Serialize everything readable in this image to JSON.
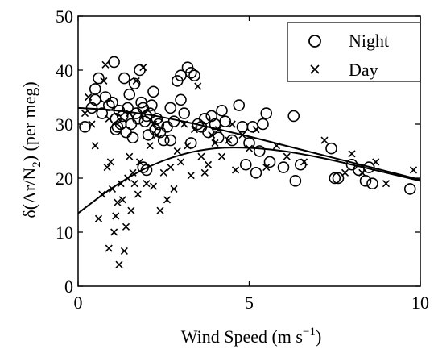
{
  "chart_data": {
    "type": "scatter",
    "xlabel": "Wind Speed (m s",
    "xlabel_sup": "−1",
    "xlabel_close": ")",
    "ylabel_pre": "δ(Ar/N",
    "ylabel_sub": "2",
    "ylabel_post": ") (per meg)",
    "xlim": [
      0,
      10
    ],
    "ylim": [
      0,
      50
    ],
    "xticks": [
      0,
      5,
      10
    ],
    "yticks": [
      0,
      10,
      20,
      30,
      40,
      50
    ],
    "grid": false,
    "legend_position": "top-right",
    "series": [
      {
        "name": "Night",
        "marker": "circle",
        "points": [
          [
            0.2,
            29.5
          ],
          [
            0.4,
            33
          ],
          [
            0.5,
            34.5
          ],
          [
            0.5,
            36.5
          ],
          [
            0.6,
            38.5
          ],
          [
            0.7,
            32
          ],
          [
            0.8,
            35
          ],
          [
            0.9,
            33.5
          ],
          [
            1.0,
            34
          ],
          [
            1.05,
            41.5
          ],
          [
            1.1,
            31
          ],
          [
            1.15,
            29.5
          ],
          [
            1.2,
            32.5
          ],
          [
            1.25,
            30
          ],
          [
            1.3,
            31.5
          ],
          [
            1.35,
            38.5
          ],
          [
            1.4,
            28.5
          ],
          [
            1.45,
            33
          ],
          [
            1.5,
            35.5
          ],
          [
            1.55,
            30
          ],
          [
            1.6,
            27.5
          ],
          [
            1.65,
            37.5
          ],
          [
            1.7,
            32
          ],
          [
            1.75,
            31
          ],
          [
            1.8,
            40
          ],
          [
            1.85,
            34
          ],
          [
            1.9,
            33
          ],
          [
            1.95,
            30.5
          ],
          [
            2.0,
            31.5
          ],
          [
            2.05,
            28
          ],
          [
            2.1,
            32
          ],
          [
            2.15,
            33.5
          ],
          [
            2.2,
            36
          ],
          [
            2.25,
            29
          ],
          [
            2.3,
            31
          ],
          [
            2.35,
            30
          ],
          [
            2.4,
            28.5
          ],
          [
            2.5,
            27
          ],
          [
            2.6,
            29.5
          ],
          [
            2.7,
            33
          ],
          [
            2.8,
            30.5
          ],
          [
            2.9,
            38
          ],
          [
            3.0,
            39
          ],
          [
            3.1,
            32
          ],
          [
            3.2,
            40.5
          ],
          [
            3.3,
            39.5
          ],
          [
            3.4,
            39
          ],
          [
            3.5,
            30
          ],
          [
            3.6,
            29.5
          ],
          [
            3.7,
            31
          ],
          [
            3.8,
            28.5
          ],
          [
            3.9,
            31.5
          ],
          [
            4.0,
            30
          ],
          [
            4.1,
            27.5
          ],
          [
            4.2,
            32.5
          ],
          [
            4.3,
            30.5
          ],
          [
            4.5,
            27
          ],
          [
            4.7,
            33.5
          ],
          [
            4.8,
            29.5
          ],
          [
            4.9,
            22.5
          ],
          [
            5.0,
            26.5
          ],
          [
            5.1,
            29.5
          ],
          [
            5.2,
            21
          ],
          [
            5.3,
            25
          ],
          [
            5.4,
            30
          ],
          [
            5.5,
            32
          ],
          [
            5.6,
            23
          ],
          [
            6.0,
            22
          ],
          [
            6.3,
            31.5
          ],
          [
            6.35,
            19.5
          ],
          [
            6.5,
            22.5
          ],
          [
            7.4,
            25.5
          ],
          [
            7.5,
            20
          ],
          [
            7.6,
            20
          ],
          [
            8.0,
            22.5
          ],
          [
            8.2,
            21.5
          ],
          [
            8.4,
            19.5
          ],
          [
            8.5,
            22
          ],
          [
            8.6,
            19
          ],
          [
            9.7,
            18
          ],
          [
            1.1,
            29
          ],
          [
            1.9,
            22
          ],
          [
            2.0,
            21.5
          ],
          [
            2.7,
            27
          ],
          [
            3.0,
            34.5
          ],
          [
            3.3,
            26.5
          ]
        ]
      },
      {
        "name": "Day",
        "marker": "x",
        "points": [
          [
            0.2,
            32
          ],
          [
            0.3,
            35
          ],
          [
            0.4,
            30
          ],
          [
            0.5,
            26
          ],
          [
            0.6,
            12.5
          ],
          [
            0.7,
            17
          ],
          [
            0.75,
            38
          ],
          [
            0.8,
            41
          ],
          [
            0.85,
            22
          ],
          [
            0.9,
            7
          ],
          [
            0.95,
            23
          ],
          [
            1.0,
            18
          ],
          [
            1.05,
            10
          ],
          [
            1.1,
            13
          ],
          [
            1.15,
            15.5
          ],
          [
            1.2,
            4
          ],
          [
            1.25,
            19
          ],
          [
            1.3,
            16
          ],
          [
            1.35,
            6.5
          ],
          [
            1.4,
            11
          ],
          [
            1.45,
            20
          ],
          [
            1.5,
            24
          ],
          [
            1.55,
            14
          ],
          [
            1.6,
            21
          ],
          [
            1.65,
            19
          ],
          [
            1.7,
            38
          ],
          [
            1.75,
            17
          ],
          [
            1.8,
            23
          ],
          [
            1.9,
            40.5
          ],
          [
            2.0,
            19
          ],
          [
            2.1,
            26
          ],
          [
            2.2,
            18.5
          ],
          [
            2.3,
            28
          ],
          [
            2.4,
            14
          ],
          [
            2.5,
            21
          ],
          [
            2.6,
            16
          ],
          [
            2.7,
            22
          ],
          [
            2.8,
            18
          ],
          [
            2.9,
            25
          ],
          [
            3.0,
            23
          ],
          [
            3.1,
            30
          ],
          [
            3.2,
            26
          ],
          [
            3.3,
            20.5
          ],
          [
            3.4,
            29
          ],
          [
            3.5,
            37
          ],
          [
            3.6,
            24
          ],
          [
            3.7,
            21
          ],
          [
            3.8,
            22.5
          ],
          [
            3.9,
            28
          ],
          [
            4.0,
            26.5
          ],
          [
            4.1,
            29
          ],
          [
            4.2,
            24
          ],
          [
            4.4,
            27
          ],
          [
            4.5,
            30
          ],
          [
            4.6,
            21.5
          ],
          [
            4.8,
            28
          ],
          [
            5.0,
            25.5
          ],
          [
            5.2,
            29
          ],
          [
            5.5,
            22
          ],
          [
            5.8,
            26
          ],
          [
            6.1,
            24
          ],
          [
            6.6,
            23
          ],
          [
            7.2,
            27
          ],
          [
            7.8,
            21
          ],
          [
            8.0,
            24.5
          ],
          [
            8.3,
            21
          ],
          [
            8.7,
            23
          ],
          [
            9.0,
            19
          ],
          [
            9.8,
            21.5
          ],
          [
            1.5,
            32
          ],
          [
            2.2,
            30
          ],
          [
            0.9,
            31
          ]
        ]
      }
    ],
    "fits": [
      {
        "series": "Night",
        "x": [
          0,
          1,
          2,
          3,
          4,
          5,
          6,
          7,
          8,
          9,
          10
        ],
        "y": [
          33,
          32.6,
          31.8,
          30.6,
          29.2,
          27.7,
          26.1,
          24.5,
          22.9,
          21.3,
          19.7
        ]
      },
      {
        "series": "Day",
        "x": [
          0,
          1,
          2,
          3,
          4,
          5,
          6,
          7,
          8,
          9,
          10
        ],
        "y": [
          13.5,
          18.2,
          21.9,
          24.3,
          25.5,
          25.6,
          25.0,
          23.9,
          22.5,
          21.0,
          19.5
        ]
      }
    ]
  }
}
